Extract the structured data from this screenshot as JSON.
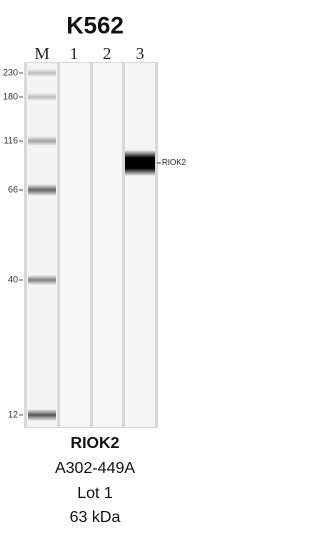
{
  "title": "K562",
  "lanes": [
    "M",
    "1",
    "2",
    "3"
  ],
  "markers": [
    "230",
    "180",
    "116",
    "66",
    "40",
    "12"
  ],
  "band_label": "RIOK2",
  "caption": [
    "RIOK2",
    "A302-449A",
    "Lot 1",
    "63 kDa"
  ]
}
